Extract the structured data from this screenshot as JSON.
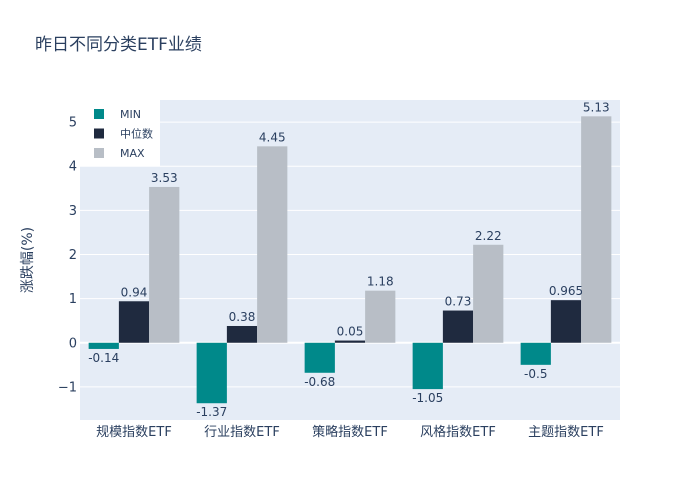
{
  "chart_data": {
    "type": "bar",
    "title": "昨日不同分类ETF业绩",
    "xlabel": "",
    "ylabel": "涨跌幅(%)",
    "categories": [
      "规模指数ETF",
      "行业指数ETF",
      "策略指数ETF",
      "风格指数ETF",
      "主题指数ETF"
    ],
    "series": [
      {
        "name": "MIN",
        "color": "#00898a",
        "values": [
          -0.14,
          -1.37,
          -0.68,
          -1.05,
          -0.5
        ],
        "labels": [
          "-0.14",
          "-1.37",
          "-0.68",
          "-1.05",
          "-0.5"
        ]
      },
      {
        "name": "中位数",
        "color": "#1f2a3f",
        "values": [
          0.94,
          0.38,
          0.05,
          0.73,
          0.965
        ],
        "labels": [
          "0.94",
          "0.38",
          "0.05",
          "0.73",
          "0.965"
        ]
      },
      {
        "name": "MAX",
        "color": "#b8bec6",
        "values": [
          3.53,
          4.45,
          1.18,
          2.22,
          5.13
        ],
        "labels": [
          "3.53",
          "4.45",
          "1.18",
          "2.22",
          "5.13"
        ]
      }
    ],
    "yticks": [
      -1,
      0,
      1,
      2,
      3,
      4,
      5
    ],
    "ytick_labels": [
      "−1",
      "0",
      "1",
      "2",
      "3",
      "4",
      "5"
    ],
    "ylim": [
      -1.75,
      5.5
    ],
    "grid": true,
    "legend_position": "top-left",
    "background_color": "#e5ecf6"
  }
}
